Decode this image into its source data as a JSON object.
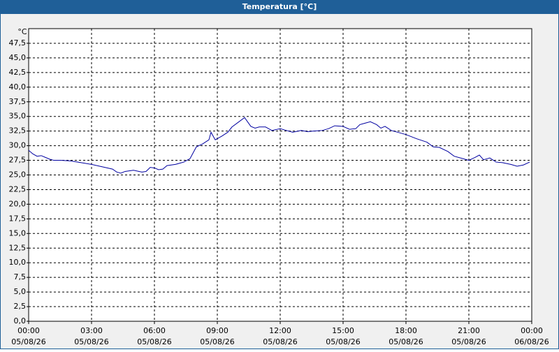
{
  "chart_data": {
    "type": "line",
    "title": "Temperatura [°C]",
    "y_unit": "°C",
    "x": [
      0,
      0.2,
      0.4,
      0.6,
      0.8,
      1.0,
      1.2,
      1.5,
      2.0,
      2.5,
      3.0,
      3.5,
      4.0,
      4.2,
      4.4,
      4.6,
      5.0,
      5.4,
      5.6,
      5.8,
      6.0,
      6.2,
      6.4,
      6.6,
      7.0,
      7.4,
      7.7,
      8.0,
      8.3,
      8.6,
      8.7,
      8.9,
      9.2,
      9.5,
      9.7,
      10.0,
      10.3,
      10.6,
      10.8,
      11.0,
      11.3,
      11.6,
      12.0,
      12.3,
      12.6,
      13.0,
      13.3,
      13.6,
      14.0,
      14.3,
      14.6,
      15.0,
      15.3,
      15.6,
      15.8,
      16.0,
      16.3,
      16.6,
      16.8,
      17.0,
      17.3,
      17.6,
      18.0,
      18.5,
      19.0,
      19.3,
      19.6,
      20.0,
      20.3,
      20.7,
      21.0,
      21.3,
      21.5,
      21.7,
      22.0,
      22.3,
      22.6,
      23.0,
      23.3,
      23.6,
      23.9
    ],
    "series": [
      {
        "name": "Temperatura",
        "color": "#0000a0",
        "values": [
          29.2,
          28.6,
          28.2,
          28.3,
          28.0,
          27.7,
          27.5,
          27.5,
          27.4,
          27.1,
          26.8,
          26.4,
          26.0,
          25.5,
          25.3,
          25.6,
          25.8,
          25.5,
          25.6,
          26.3,
          26.2,
          25.9,
          26.0,
          26.6,
          26.8,
          27.2,
          27.8,
          29.8,
          30.3,
          31.0,
          32.3,
          31.0,
          31.6,
          32.3,
          33.2,
          34.0,
          34.8,
          33.3,
          33.0,
          33.2,
          33.2,
          32.6,
          32.9,
          32.6,
          32.3,
          32.6,
          32.4,
          32.5,
          32.6,
          32.9,
          33.4,
          33.3,
          32.8,
          32.9,
          33.6,
          33.8,
          34.1,
          33.6,
          33.0,
          33.3,
          32.6,
          32.3,
          31.9,
          31.2,
          30.6,
          29.8,
          29.7,
          29.0,
          28.2,
          27.8,
          27.5,
          28.0,
          28.4,
          27.6,
          27.9,
          27.2,
          27.1,
          26.8,
          26.5,
          26.7,
          27.2
        ]
      }
    ],
    "xlim": [
      0,
      24
    ],
    "xticks": [
      {
        "value": 0,
        "label": "00:00"
      },
      {
        "value": 3,
        "label": "03:00"
      },
      {
        "value": 6,
        "label": "06:00"
      },
      {
        "value": 9,
        "label": "09:00"
      },
      {
        "value": 12,
        "label": "12:00"
      },
      {
        "value": 15,
        "label": "15:00"
      },
      {
        "value": 18,
        "label": "18:00"
      },
      {
        "value": 21,
        "label": "21:00"
      },
      {
        "value": 24,
        "label": "00:00"
      }
    ],
    "xtick_dates": [
      "05/08/26",
      "05/08/26",
      "05/08/26",
      "05/08/26",
      "05/08/26",
      "05/08/26",
      "05/08/26",
      "05/08/26",
      "06/08/26"
    ],
    "ylim": [
      0,
      50
    ],
    "yticks": [
      {
        "value": 0,
        "label": "0,0"
      },
      {
        "value": 2.5,
        "label": "2,5"
      },
      {
        "value": 5,
        "label": "5,0"
      },
      {
        "value": 7.5,
        "label": "7,5"
      },
      {
        "value": 10,
        "label": "10,0"
      },
      {
        "value": 12.5,
        "label": "12,5"
      },
      {
        "value": 15,
        "label": "15,0"
      },
      {
        "value": 17.5,
        "label": "17,5"
      },
      {
        "value": 20,
        "label": "20,0"
      },
      {
        "value": 22.5,
        "label": "22,5"
      },
      {
        "value": 25,
        "label": "25,0"
      },
      {
        "value": 27.5,
        "label": "27,5"
      },
      {
        "value": 30,
        "label": "30,0"
      },
      {
        "value": 32.5,
        "label": "32,5"
      },
      {
        "value": 35,
        "label": "35,0"
      },
      {
        "value": 37.5,
        "label": "37,5"
      },
      {
        "value": 40,
        "label": "40,0"
      },
      {
        "value": 42.5,
        "label": "42,5"
      },
      {
        "value": 45,
        "label": "45,0"
      },
      {
        "value": 47.5,
        "label": "47,5"
      }
    ],
    "grid": true
  }
}
